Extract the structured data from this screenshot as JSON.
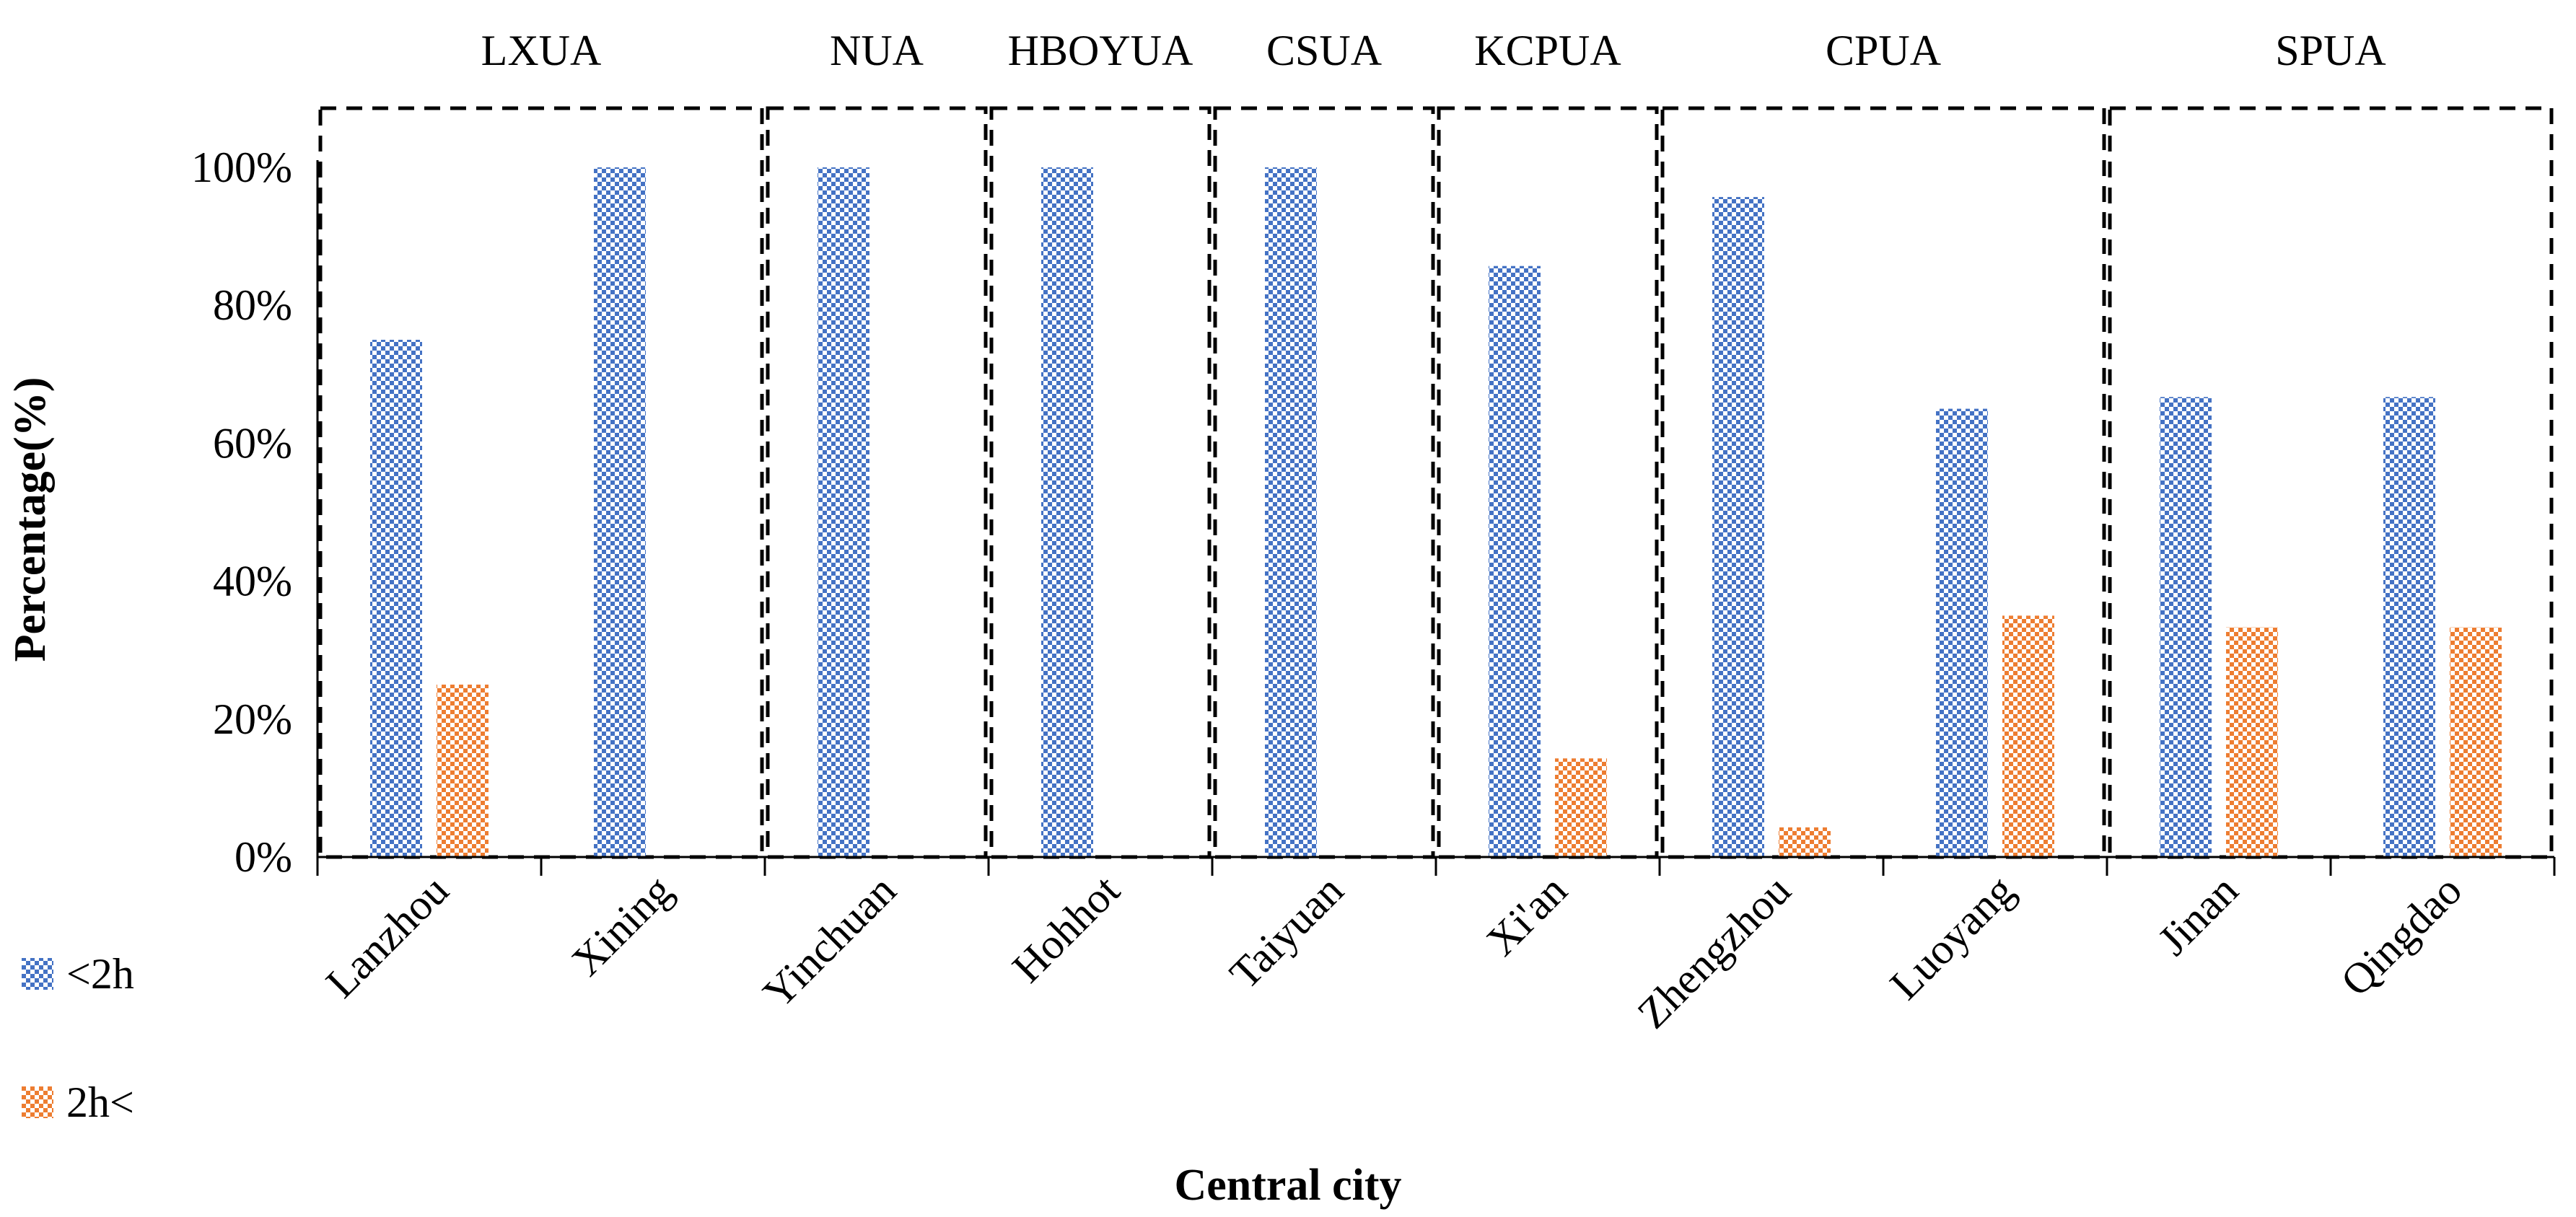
{
  "chart_data": {
    "type": "bar",
    "title": "",
    "xlabel": "Central city",
    "ylabel": "Percentage(%)",
    "ylim": [
      0,
      100
    ],
    "yticks": [
      0,
      20,
      40,
      60,
      80,
      100
    ],
    "ytick_labels": [
      "0%",
      "20%",
      "40%",
      "60%",
      "80%",
      "100%"
    ],
    "grid": false,
    "categories": [
      "Lanzhou",
      "Xining",
      "Yinchuan",
      "Hohhot",
      "Taiyuan",
      "Xi'an",
      "Zhengzhou",
      "Luoyang",
      "Jinan",
      "Qingdao"
    ],
    "series": [
      {
        "name": "<2h",
        "color": "#4472C4",
        "values": [
          75,
          100,
          100,
          100,
          100,
          85.7,
          95.7,
          65,
          66.7,
          66.7
        ]
      },
      {
        "name": "2h<",
        "color": "#ED7D31",
        "values": [
          25,
          0,
          0,
          0,
          0,
          14.3,
          4.3,
          35,
          33.3,
          33.3
        ]
      }
    ],
    "groups": [
      {
        "name": "LXUA",
        "from": 0,
        "to": 1
      },
      {
        "name": "NUA",
        "from": 2,
        "to": 2
      },
      {
        "name": "HBOYUA",
        "from": 3,
        "to": 3
      },
      {
        "name": "CSUA",
        "from": 4,
        "to": 4
      },
      {
        "name": "KCPUA",
        "from": 5,
        "to": 5
      },
      {
        "name": "CPUA",
        "from": 6,
        "to": 7
      },
      {
        "name": "SPUA",
        "from": 8,
        "to": 9
      }
    ],
    "legend": {
      "placement": "bottom-left"
    }
  }
}
